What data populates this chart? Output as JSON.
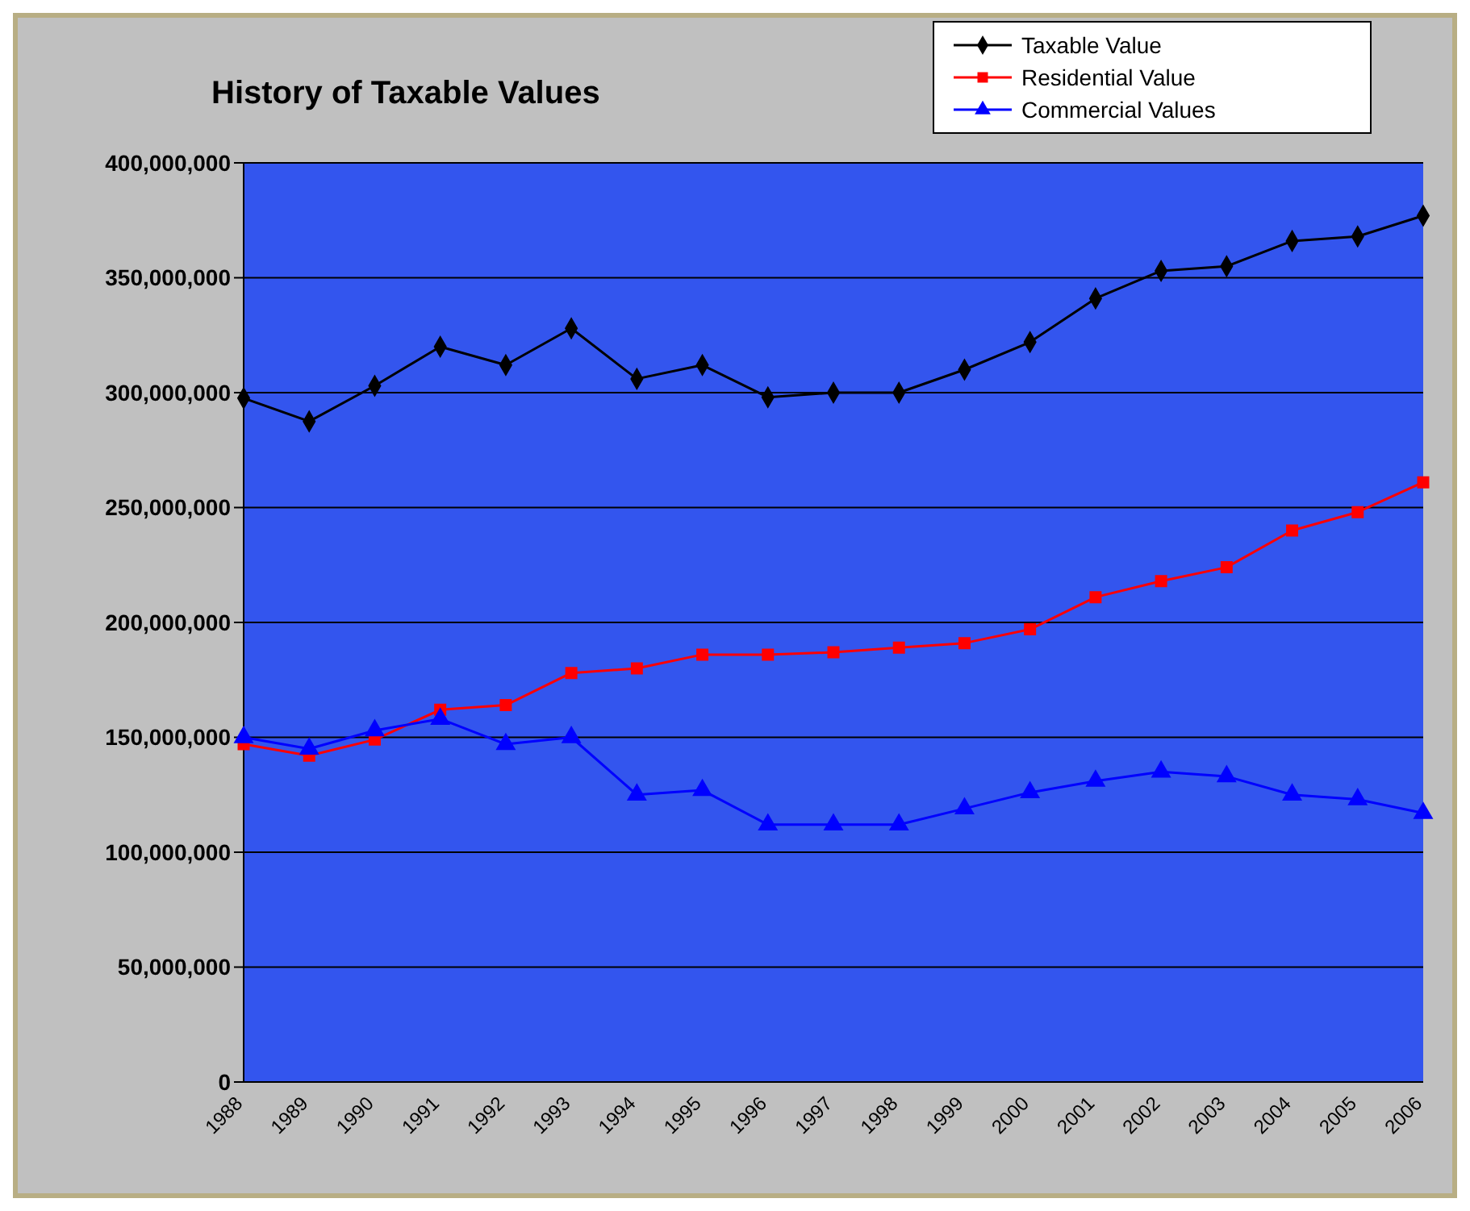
{
  "chart_data": {
    "type": "line",
    "title": "History of Taxable Values",
    "categories": [
      "1988",
      "1989",
      "1990",
      "1991",
      "1992",
      "1993",
      "1994",
      "1995",
      "1996",
      "1997",
      "1998",
      "1999",
      "2000",
      "2001",
      "2002",
      "2003",
      "2004",
      "2005",
      "2006"
    ],
    "series": [
      {
        "name": "Taxable  Value",
        "color": "#000000",
        "marker": "diamond",
        "values": [
          297600000,
          287500000,
          303000000,
          320000000,
          312000000,
          328000000,
          306000000,
          312000000,
          298000000,
          300000000,
          300000000,
          310000000,
          322000000,
          341000000,
          353000000,
          355000000,
          366000000,
          368000000,
          377000000
        ]
      },
      {
        "name": "Residential Value",
        "color": "#ff0000",
        "marker": "square",
        "values": [
          147000000,
          142000000,
          149000000,
          162000000,
          164000000,
          178000000,
          180000000,
          186000000,
          186000000,
          187000000,
          189000000,
          191000000,
          197000000,
          211000000,
          218000000,
          224000000,
          240000000,
          248000000,
          261000000
        ]
      },
      {
        "name": "Commercial Values",
        "color": "#0000ff",
        "marker": "triangle",
        "values": [
          150000000,
          145000000,
          153000000,
          158000000,
          147000000,
          150000000,
          125000000,
          127000000,
          112000000,
          112000000,
          112000000,
          119000000,
          126000000,
          131000000,
          135000000,
          133000000,
          125000000,
          123000000,
          117000000
        ]
      }
    ],
    "ylim": [
      0,
      400000000
    ],
    "yticks": [
      0,
      {
        "value": 50000000,
        "label": "50,000,000"
      },
      {
        "value": 100000000,
        "label": "100,000,000"
      },
      {
        "value": 150000000,
        "label": "150,000,000"
      },
      {
        "value": 200000000,
        "label": "200,000,000"
      },
      {
        "value": 250000000,
        "label": "250,000,000"
      },
      {
        "value": 300000000,
        "label": "300,000,000"
      },
      {
        "value": 350000000,
        "label": "350,000,000"
      },
      {
        "value": 400000000,
        "label": "400,000,000"
      }
    ],
    "grid": "y",
    "legend": "top right",
    "line_style": "solid"
  }
}
